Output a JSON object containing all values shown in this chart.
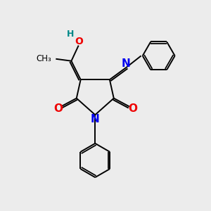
{
  "bg_color": "#ececec",
  "atom_colors": {
    "C": "#000000",
    "N": "#0000ee",
    "O": "#ee0000",
    "H": "#008888"
  },
  "bond_color": "#000000",
  "bond_width": 1.4,
  "figsize": [
    3.0,
    3.0
  ],
  "dpi": 100
}
